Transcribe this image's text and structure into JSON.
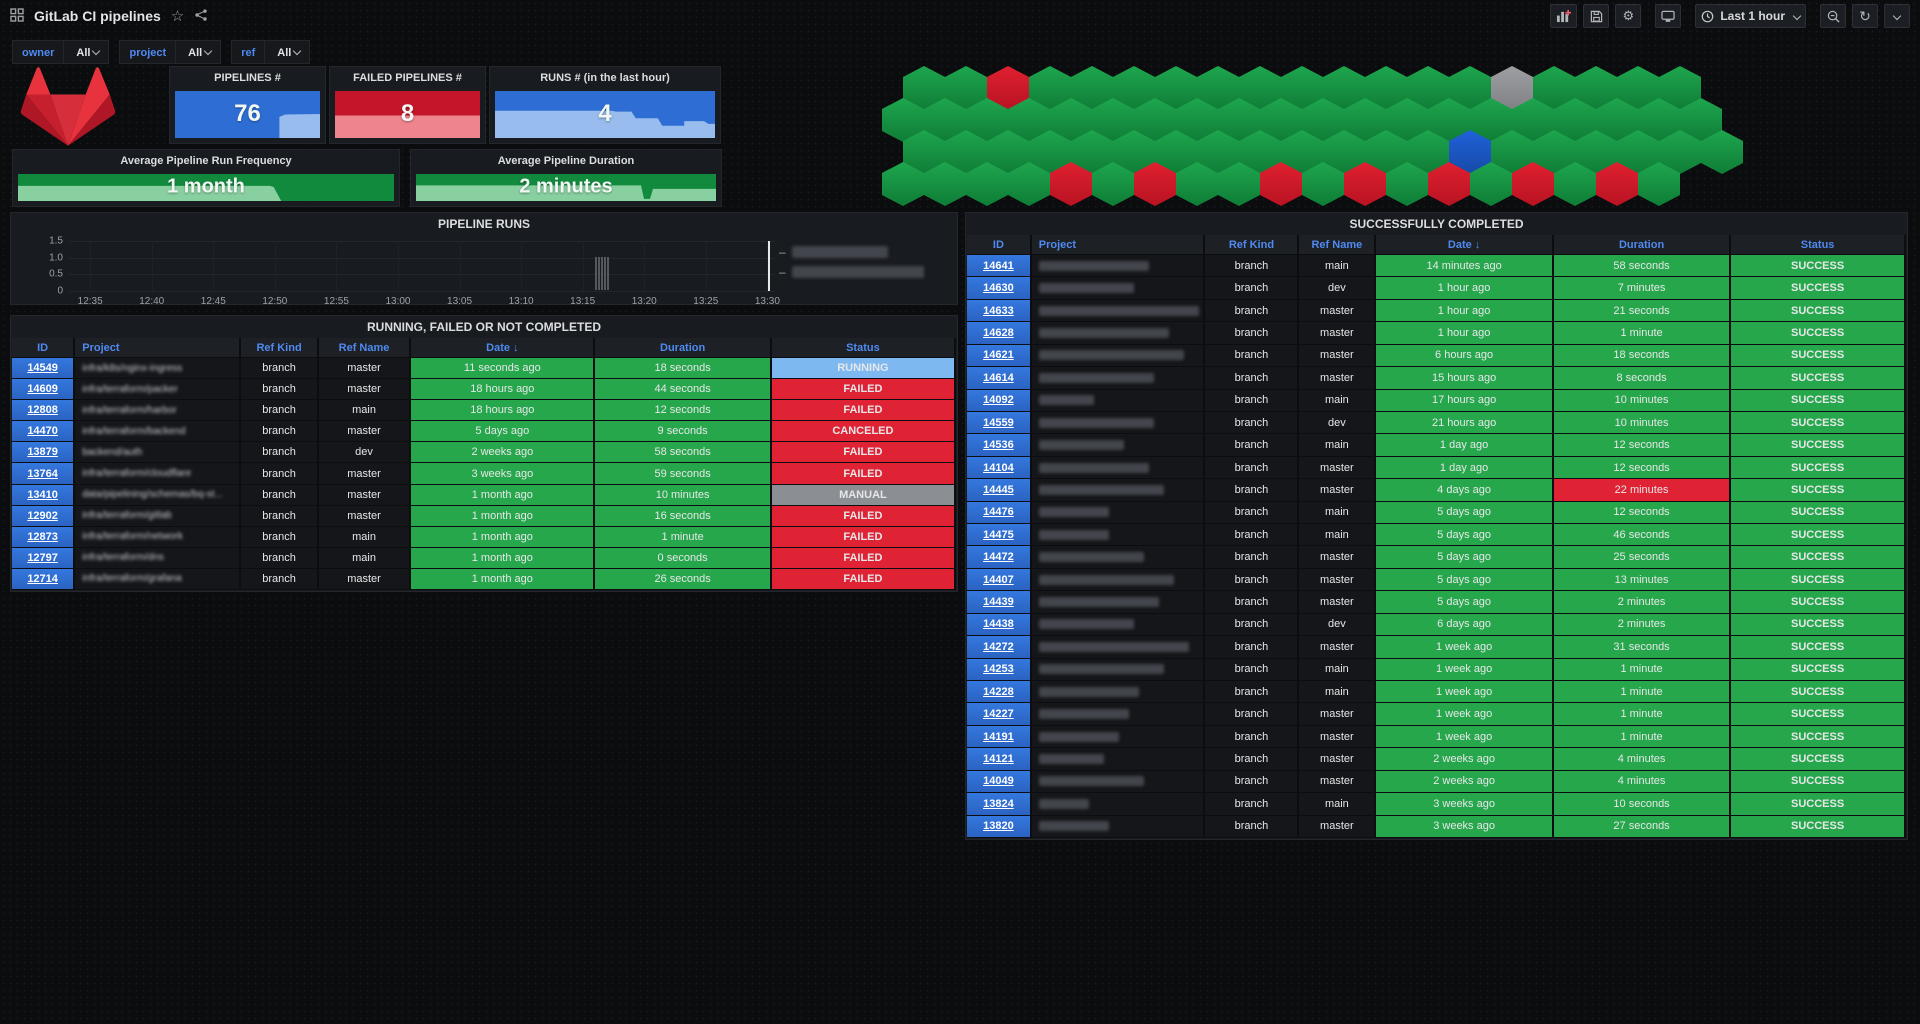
{
  "nav": {
    "title": "GitLab CI pipelines",
    "time_range": "Last 1 hour",
    "left_icons": [
      "apps-grid-icon",
      "star-icon",
      "share-icon"
    ],
    "right_icons": [
      "add-panel-icon",
      "save-icon",
      "gear-icon",
      "tv-icon",
      "clock-icon",
      "zoom-out-icon",
      "refresh-icon",
      "chevron-down-icon"
    ]
  },
  "filters": [
    {
      "label": "owner",
      "value": "All"
    },
    {
      "label": "project",
      "value": "All"
    },
    {
      "label": "ref",
      "value": "All"
    }
  ],
  "stats": [
    {
      "title": "PIPELINES #",
      "value": "76",
      "base_color": "#2e6ed4",
      "spark_color": "#9dc0ee",
      "spark": "72,100 72,55 76,50 100,49 100,100"
    },
    {
      "title": "FAILED PIPELINES #",
      "value": "8",
      "base_color": "#c4162a",
      "spark_color": "#ef8a93",
      "spark": "0,100 0,52 100,52 100,100"
    },
    {
      "title": "RUNS # (in the last hour)",
      "value": "4",
      "base_color": "#2e6ed4",
      "spark_color": "#9dc0ee",
      "spark": "0,100 0,42 53,42 55,44 62,44 64,58 74,58 76,74 86,74 86,64 95,64 97,70 100,70 100,100"
    }
  ],
  "averages": [
    {
      "title": "Average Pipeline Run Frequency",
      "value": "1 month",
      "base_color": "#128a3e",
      "spark_color": "#8fd4a5",
      "spark": "0,100 0,44 67,44 68,48 70,100"
    },
    {
      "title": "Average Pipeline Duration",
      "value": "2 minutes",
      "base_color": "#128a3e",
      "spark_color": "#8fd4a5",
      "spark": "0,100 0,42 75,42 76,92 78,92 79,55 100,55 100,100"
    }
  ],
  "honeycomb": {
    "palette": {
      "g": "#1ea64e",
      "r": "#e02030",
      "a": "#9d9fa2",
      "b": "#1f62d9"
    },
    "palette_dark": {
      "g": "#0f7d37",
      "r": "#b81322",
      "a": "#7f8184",
      "b": "#174aa8"
    },
    "rows": [
      {
        "offset": 21,
        "cells": [
          "g",
          "g",
          "r",
          "g",
          "g",
          "g",
          "g",
          "g",
          "g",
          "g",
          "g",
          "g",
          "g",
          "g",
          "a",
          "g",
          "g",
          "g",
          "g"
        ]
      },
      {
        "offset": 0,
        "cells": [
          "g",
          "g",
          "g",
          "g",
          "g",
          "g",
          "g",
          "g",
          "g",
          "g",
          "g",
          "g",
          "g",
          "g",
          "g",
          "g",
          "g",
          "g",
          "g",
          "g"
        ]
      },
      {
        "offset": 21,
        "cells": [
          "g",
          "g",
          "g",
          "g",
          "g",
          "g",
          "g",
          "g",
          "g",
          "g",
          "g",
          "g",
          "g",
          "b",
          "g",
          "g",
          "g",
          "g",
          "g",
          "g"
        ]
      },
      {
        "offset": 0,
        "cells": [
          "g",
          "g",
          "g",
          "g",
          "r",
          "g",
          "r",
          "g",
          "g",
          "r",
          "g",
          "r",
          "g",
          "r",
          "g",
          "r",
          "g",
          "r",
          "g"
        ]
      }
    ]
  },
  "chart_data": {
    "type": "bar",
    "title": "PIPELINE RUNS",
    "x_ticks": [
      "12:35",
      "12:40",
      "12:45",
      "12:50",
      "12:55",
      "13:00",
      "13:05",
      "13:10",
      "13:15",
      "13:20",
      "13:25",
      "13:30"
    ],
    "y_ticks": [
      "1.5",
      "1.0",
      "0.5",
      "0"
    ],
    "ylim": [
      0,
      1.5
    ],
    "grid": true,
    "bars": [
      {
        "x": "13:16",
        "value": 1.0
      }
    ],
    "now_marker_x": "13:30",
    "legend_position": "right",
    "legend": [
      {
        "redacted": true,
        "width": 96
      },
      {
        "redacted": true,
        "width": 132
      }
    ]
  },
  "colors": {
    "green_cell": "#27a74c",
    "red_cell": "#e02334",
    "status": {
      "RUNNING": "#7db8f0",
      "FAILED": "#e02334",
      "CANCELED": "#e02334",
      "MANUAL": "#8b8e93",
      "SUCCESS": "#27a74c"
    }
  },
  "left_table": {
    "title": "RUNNING, FAILED OR NOT COMPLETED",
    "columns": [
      "ID",
      "Project",
      "Ref Kind",
      "Ref Name",
      "Date",
      "Duration",
      "Status"
    ],
    "sorted_column": "Date",
    "sort_arrow": "↓",
    "project_blurred": true,
    "rows": [
      {
        "id": "14549",
        "project": "infra/k8s/nginx-ingress",
        "ref_kind": "branch",
        "ref_name": "master",
        "date": "11 seconds ago",
        "duration": "18 seconds",
        "status": "RUNNING"
      },
      {
        "id": "14609",
        "project": "infra/terraform/packer",
        "ref_kind": "branch",
        "ref_name": "master",
        "date": "18 hours ago",
        "duration": "44 seconds",
        "status": "FAILED"
      },
      {
        "id": "12808",
        "project": "infra/terraform/harbor",
        "ref_kind": "branch",
        "ref_name": "main",
        "date": "18 hours ago",
        "duration": "12 seconds",
        "status": "FAILED"
      },
      {
        "id": "14470",
        "project": "infra/terraform/backend",
        "ref_kind": "branch",
        "ref_name": "master",
        "date": "5 days ago",
        "duration": "9 seconds",
        "status": "CANCELED"
      },
      {
        "id": "13879",
        "project": "backend/auth",
        "ref_kind": "branch",
        "ref_name": "dev",
        "date": "2 weeks ago",
        "duration": "58 seconds",
        "status": "FAILED"
      },
      {
        "id": "13764",
        "project": "infra/terraform/cloudflare",
        "ref_kind": "branch",
        "ref_name": "master",
        "date": "3 weeks ago",
        "duration": "59 seconds",
        "status": "FAILED"
      },
      {
        "id": "13410",
        "project": "data/pipelining/schemas/bq-st...",
        "ref_kind": "branch",
        "ref_name": "master",
        "date": "1 month ago",
        "duration": "10 minutes",
        "status": "MANUAL"
      },
      {
        "id": "12902",
        "project": "infra/terraform/gitlab",
        "ref_kind": "branch",
        "ref_name": "master",
        "date": "1 month ago",
        "duration": "16 seconds",
        "status": "FAILED"
      },
      {
        "id": "12873",
        "project": "infra/terraform/network",
        "ref_kind": "branch",
        "ref_name": "main",
        "date": "1 month ago",
        "duration": "1 minute",
        "status": "FAILED"
      },
      {
        "id": "12797",
        "project": "infra/terraform/dns",
        "ref_kind": "branch",
        "ref_name": "main",
        "date": "1 month ago",
        "duration": "0 seconds",
        "status": "FAILED"
      },
      {
        "id": "12714",
        "project": "infra/terraform/grafana",
        "ref_kind": "branch",
        "ref_name": "master",
        "date": "1 month ago",
        "duration": "26 seconds",
        "status": "FAILED"
      }
    ]
  },
  "right_table": {
    "title": "SUCCESSFULLY COMPLETED",
    "columns": [
      "ID",
      "Project",
      "Ref Kind",
      "Ref Name",
      "Date",
      "Duration",
      "Status"
    ],
    "sorted_column": "Date",
    "sort_arrow": "↓",
    "project_redacted": true,
    "rows": [
      {
        "id": "14641",
        "redact_w": 110,
        "ref_kind": "branch",
        "ref_name": "main",
        "date": "14 minutes ago",
        "duration": "58 seconds",
        "status": "SUCCESS"
      },
      {
        "id": "14630",
        "redact_w": 95,
        "ref_kind": "branch",
        "ref_name": "dev",
        "date": "1 hour ago",
        "duration": "7 minutes",
        "status": "SUCCESS"
      },
      {
        "id": "14633",
        "redact_w": 160,
        "ref_kind": "branch",
        "ref_name": "master",
        "date": "1 hour ago",
        "duration": "21 seconds",
        "status": "SUCCESS"
      },
      {
        "id": "14628",
        "redact_w": 130,
        "ref_kind": "branch",
        "ref_name": "master",
        "date": "1 hour ago",
        "duration": "1 minute",
        "status": "SUCCESS"
      },
      {
        "id": "14621",
        "redact_w": 145,
        "ref_kind": "branch",
        "ref_name": "master",
        "date": "6 hours ago",
        "duration": "18 seconds",
        "status": "SUCCESS"
      },
      {
        "id": "14614",
        "redact_w": 115,
        "ref_kind": "branch",
        "ref_name": "master",
        "date": "15 hours ago",
        "duration": "8 seconds",
        "status": "SUCCESS"
      },
      {
        "id": "14092",
        "redact_w": 55,
        "ref_kind": "branch",
        "ref_name": "main",
        "date": "17 hours ago",
        "duration": "10 minutes",
        "status": "SUCCESS"
      },
      {
        "id": "14559",
        "redact_w": 115,
        "ref_kind": "branch",
        "ref_name": "dev",
        "date": "21 hours ago",
        "duration": "10 minutes",
        "status": "SUCCESS"
      },
      {
        "id": "14536",
        "redact_w": 85,
        "ref_kind": "branch",
        "ref_name": "main",
        "date": "1 day ago",
        "duration": "12 seconds",
        "status": "SUCCESS"
      },
      {
        "id": "14104",
        "redact_w": 110,
        "ref_kind": "branch",
        "ref_name": "master",
        "date": "1 day ago",
        "duration": "12 seconds",
        "status": "SUCCESS"
      },
      {
        "id": "14445",
        "redact_w": 125,
        "ref_kind": "branch",
        "ref_name": "master",
        "date": "4 days ago",
        "duration": "22 minutes",
        "duration_red": true,
        "status": "SUCCESS"
      },
      {
        "id": "14476",
        "redact_w": 70,
        "ref_kind": "branch",
        "ref_name": "main",
        "date": "5 days ago",
        "duration": "12 seconds",
        "status": "SUCCESS"
      },
      {
        "id": "14475",
        "redact_w": 70,
        "ref_kind": "branch",
        "ref_name": "main",
        "date": "5 days ago",
        "duration": "46 seconds",
        "status": "SUCCESS"
      },
      {
        "id": "14472",
        "redact_w": 105,
        "ref_kind": "branch",
        "ref_name": "master",
        "date": "5 days ago",
        "duration": "25 seconds",
        "status": "SUCCESS"
      },
      {
        "id": "14407",
        "redact_w": 135,
        "ref_kind": "branch",
        "ref_name": "master",
        "date": "5 days ago",
        "duration": "13 minutes",
        "status": "SUCCESS"
      },
      {
        "id": "14439",
        "redact_w": 120,
        "ref_kind": "branch",
        "ref_name": "master",
        "date": "5 days ago",
        "duration": "2 minutes",
        "status": "SUCCESS"
      },
      {
        "id": "14438",
        "redact_w": 95,
        "ref_kind": "branch",
        "ref_name": "dev",
        "date": "6 days ago",
        "duration": "2 minutes",
        "status": "SUCCESS"
      },
      {
        "id": "14272",
        "redact_w": 150,
        "ref_kind": "branch",
        "ref_name": "master",
        "date": "1 week ago",
        "duration": "31 seconds",
        "status": "SUCCESS"
      },
      {
        "id": "14253",
        "redact_w": 125,
        "ref_kind": "branch",
        "ref_name": "main",
        "date": "1 week ago",
        "duration": "1 minute",
        "status": "SUCCESS"
      },
      {
        "id": "14228",
        "redact_w": 100,
        "ref_kind": "branch",
        "ref_name": "main",
        "date": "1 week ago",
        "duration": "1 minute",
        "status": "SUCCESS"
      },
      {
        "id": "14227",
        "redact_w": 90,
        "ref_kind": "branch",
        "ref_name": "master",
        "date": "1 week ago",
        "duration": "1 minute",
        "status": "SUCCESS"
      },
      {
        "id": "14191",
        "redact_w": 80,
        "ref_kind": "branch",
        "ref_name": "master",
        "date": "1 week ago",
        "duration": "1 minute",
        "status": "SUCCESS"
      },
      {
        "id": "14121",
        "redact_w": 65,
        "ref_kind": "branch",
        "ref_name": "master",
        "date": "2 weeks ago",
        "duration": "4 minutes",
        "status": "SUCCESS"
      },
      {
        "id": "14049",
        "redact_w": 105,
        "ref_kind": "branch",
        "ref_name": "master",
        "date": "2 weeks ago",
        "duration": "4 minutes",
        "status": "SUCCESS"
      },
      {
        "id": "13824",
        "redact_w": 50,
        "ref_kind": "branch",
        "ref_name": "main",
        "date": "3 weeks ago",
        "duration": "10 seconds",
        "status": "SUCCESS"
      },
      {
        "id": "13820",
        "redact_w": 70,
        "ref_kind": "branch",
        "ref_name": "master",
        "date": "3 weeks ago",
        "duration": "27 seconds",
        "status": "SUCCESS"
      }
    ]
  }
}
